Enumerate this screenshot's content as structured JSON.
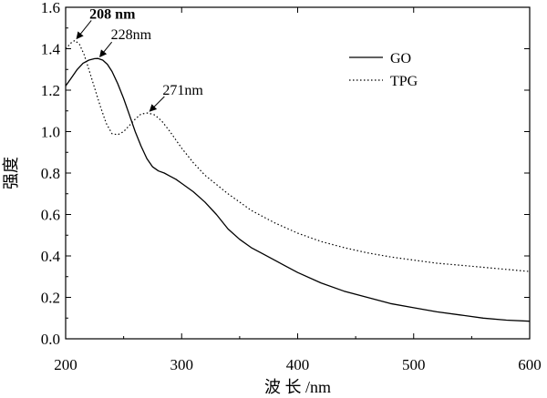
{
  "chart_data": {
    "type": "line",
    "xlabel": "波 长 /nm",
    "ylabel": "强度",
    "xlim": [
      200,
      600
    ],
    "ylim": [
      0.0,
      1.6
    ],
    "xticks": [
      200,
      300,
      400,
      500,
      600
    ],
    "yticks": [
      0.0,
      0.2,
      0.4,
      0.6,
      0.8,
      1.0,
      1.2,
      1.4,
      1.6
    ],
    "ytick_labels": [
      "0.0",
      "0.2",
      "0.4",
      "0.6",
      "0.8",
      "1.0",
      "1.2",
      "1.4",
      "1.6"
    ],
    "grid": false,
    "legend_position": "top-right",
    "series": [
      {
        "name": "GO",
        "style": "solid",
        "x": [
          200,
          205,
          210,
          215,
          220,
          225,
          228,
          232,
          236,
          240,
          245,
          250,
          255,
          260,
          265,
          270,
          275,
          280,
          285,
          290,
          295,
          300,
          310,
          320,
          330,
          340,
          350,
          360,
          370,
          380,
          390,
          400,
          420,
          440,
          460,
          480,
          500,
          520,
          540,
          560,
          580,
          600
        ],
        "y": [
          1.22,
          1.26,
          1.3,
          1.33,
          1.345,
          1.352,
          1.353,
          1.345,
          1.325,
          1.29,
          1.23,
          1.16,
          1.08,
          1.0,
          0.93,
          0.87,
          0.83,
          0.81,
          0.8,
          0.785,
          0.77,
          0.75,
          0.71,
          0.66,
          0.6,
          0.53,
          0.48,
          0.44,
          0.41,
          0.38,
          0.35,
          0.32,
          0.27,
          0.23,
          0.2,
          0.17,
          0.15,
          0.13,
          0.115,
          0.1,
          0.09,
          0.085
        ]
      },
      {
        "name": "TPG",
        "style": "dotted",
        "x": [
          200,
          205,
          208,
          212,
          216,
          220,
          225,
          230,
          235,
          240,
          245,
          250,
          255,
          260,
          265,
          271,
          277,
          283,
          290,
          300,
          310,
          320,
          340,
          360,
          380,
          400,
          420,
          440,
          460,
          480,
          500,
          520,
          540,
          560,
          580,
          600
        ],
        "y": [
          1.4,
          1.43,
          1.44,
          1.42,
          1.37,
          1.3,
          1.21,
          1.12,
          1.04,
          0.99,
          0.985,
          1.0,
          1.03,
          1.06,
          1.085,
          1.09,
          1.08,
          1.05,
          1.0,
          0.92,
          0.85,
          0.79,
          0.7,
          0.62,
          0.56,
          0.51,
          0.47,
          0.44,
          0.415,
          0.395,
          0.38,
          0.365,
          0.355,
          0.345,
          0.335,
          0.325
        ]
      }
    ],
    "annotations": [
      {
        "text": "208 nm",
        "x": 208,
        "y": 1.44
      },
      {
        "text": "228nm",
        "x": 228,
        "y": 1.353
      },
      {
        "text": "271nm",
        "x": 271,
        "y": 1.09
      }
    ]
  }
}
